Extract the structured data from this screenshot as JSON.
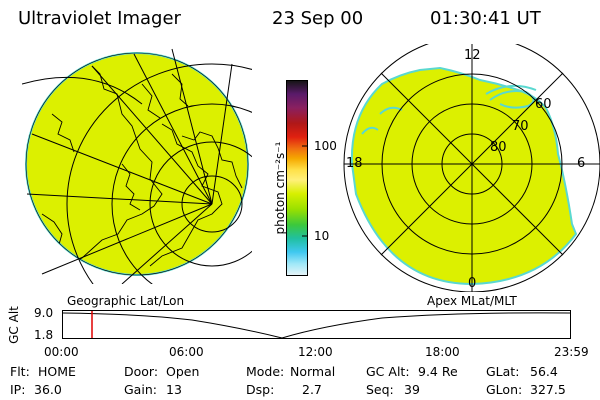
{
  "header": {
    "instrument": "Ultraviolet Imager",
    "date": "23 Sep 00",
    "time": "01:30:41 UT"
  },
  "colorbar": {
    "unit_label": "photon cm⁻²s⁻¹",
    "ticks": [
      "100",
      "10"
    ],
    "colors": [
      "#141414",
      "#5a1a6a",
      "#8a2060",
      "#b01818",
      "#e02010",
      "#f07010",
      "#f5a800",
      "#ffe14a",
      "#fff07a",
      "#d8f000",
      "#9ae000",
      "#3cc83c",
      "#20c0a0",
      "#40c8f0",
      "#a0e8f8",
      "#e8f4f8"
    ]
  },
  "left_panel": {
    "caption": "Geographic Lat/Lon",
    "fill_color": "#dcf000"
  },
  "right_panel": {
    "caption": "Apex MLat/MLT",
    "mlt_labels": [
      "12",
      "18",
      "6",
      "0"
    ],
    "mlat_labels": [
      "60",
      "70",
      "80"
    ],
    "fill_color": "#dcf000"
  },
  "altitude_plot": {
    "axis_label": "GC Alt",
    "y_ticks": [
      "9.0",
      "1.8"
    ],
    "x_ticks": [
      "00:00",
      "06:00",
      "12:00",
      "18:00",
      "23:59"
    ],
    "marker_color": "#e00000"
  },
  "info": {
    "flt_label": "Flt:",
    "flt_value": "HOME",
    "door_label": "Door:",
    "door_value": "Open",
    "mode_label": "Mode:",
    "mode_value": "Normal",
    "gcalt_label": "GC Alt:",
    "gcalt_value": "9.4 Re",
    "glat_label": "GLat:",
    "glat_value": "56.4",
    "ip_label": "IP:",
    "ip_value": "36.0",
    "gain_label": "Gain:",
    "gain_value": "13",
    "dsp_label": "Dsp:",
    "dsp_value": "2.7",
    "seq_label": "Seq:",
    "seq_value": "39",
    "glon_label": "GLon:",
    "glon_value": "327.5"
  }
}
